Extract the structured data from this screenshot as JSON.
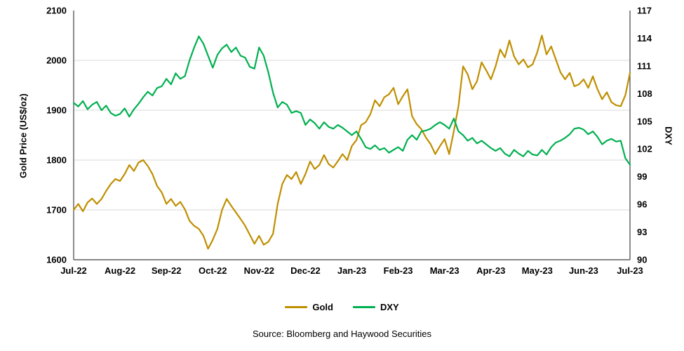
{
  "axes": {
    "left_title": "Gold Price (US$/oz)",
    "right_title": "DXY"
  },
  "legend": {
    "items": [
      {
        "label": "Gold",
        "color": "#BF8F00"
      },
      {
        "label": "DXY",
        "color": "#00B050"
      }
    ]
  },
  "source": "Source: Bloomberg and Haywood Securities",
  "chart_data": {
    "type": "line",
    "x_labels": [
      "Jul-22",
      "Aug-22",
      "Sep-22",
      "Oct-22",
      "Nov-22",
      "Dec-22",
      "Jan-23",
      "Feb-23",
      "Mar-23",
      "Apr-23",
      "May-23",
      "Jun-23",
      "Jul-23"
    ],
    "left_axis": {
      "label": "Gold Price (US$/oz)",
      "min": 1600,
      "max": 2100,
      "ticks": [
        1600,
        1700,
        1800,
        1900,
        2000,
        2100
      ]
    },
    "right_axis": {
      "label": "DXY",
      "min": 90,
      "max": 117,
      "ticks": [
        90,
        93,
        96,
        99,
        102,
        105,
        108,
        111,
        114,
        117
      ]
    },
    "grid": "horizontal",
    "legend_position": "bottom",
    "series": [
      {
        "name": "Gold",
        "axis": "left",
        "color": "#BF8F00",
        "values": [
          1700,
          1712,
          1697,
          1715,
          1723,
          1712,
          1722,
          1738,
          1752,
          1762,
          1758,
          1772,
          1790,
          1778,
          1795,
          1800,
          1788,
          1772,
          1748,
          1735,
          1712,
          1722,
          1708,
          1716,
          1701,
          1678,
          1668,
          1662,
          1648,
          1622,
          1640,
          1662,
          1700,
          1722,
          1708,
          1695,
          1682,
          1668,
          1650,
          1632,
          1648,
          1630,
          1636,
          1652,
          1712,
          1752,
          1770,
          1762,
          1776,
          1752,
          1772,
          1797,
          1782,
          1790,
          1810,
          1792,
          1785,
          1798,
          1812,
          1800,
          1828,
          1840,
          1870,
          1876,
          1892,
          1920,
          1908,
          1926,
          1932,
          1945,
          1912,
          1928,
          1942,
          1888,
          1872,
          1862,
          1845,
          1832,
          1812,
          1828,
          1842,
          1812,
          1858,
          1908,
          1988,
          1972,
          1942,
          1958,
          1996,
          1980,
          1962,
          1988,
          2022,
          2006,
          2040,
          2008,
          1992,
          2002,
          1986,
          1992,
          2016,
          2050,
          2012,
          2028,
          2002,
          1976,
          1962,
          1975,
          1948,
          1952,
          1962,
          1945,
          1968,
          1942,
          1922,
          1936,
          1916,
          1910,
          1908,
          1930,
          1975
        ]
      },
      {
        "name": "DXY",
        "axis": "right",
        "color": "#00B050",
        "values": [
          107.0,
          106.6,
          107.2,
          106.3,
          106.8,
          107.1,
          106.2,
          106.7,
          105.9,
          105.6,
          105.8,
          106.4,
          105.5,
          106.3,
          106.9,
          107.6,
          108.2,
          107.8,
          108.6,
          108.8,
          109.6,
          109.0,
          110.2,
          109.6,
          109.9,
          111.6,
          113.0,
          114.2,
          113.4,
          112.1,
          110.8,
          112.2,
          112.9,
          113.3,
          112.5,
          113.0,
          112.1,
          111.9,
          110.9,
          110.7,
          113.0,
          112.1,
          110.3,
          108.1,
          106.5,
          107.1,
          106.8,
          105.9,
          106.1,
          105.9,
          104.6,
          105.2,
          104.8,
          104.2,
          104.9,
          104.4,
          104.2,
          104.6,
          104.3,
          103.9,
          103.5,
          103.9,
          103.1,
          102.2,
          102.0,
          102.4,
          101.9,
          102.1,
          101.6,
          101.9,
          102.2,
          101.8,
          103.0,
          103.5,
          103.0,
          103.9,
          104.0,
          104.2,
          104.6,
          104.9,
          104.6,
          104.2,
          105.3,
          103.9,
          103.5,
          102.9,
          103.2,
          102.6,
          102.9,
          102.5,
          102.1,
          101.8,
          102.1,
          101.5,
          101.2,
          101.9,
          101.5,
          101.2,
          101.8,
          101.4,
          101.3,
          101.9,
          101.4,
          102.2,
          102.7,
          102.9,
          103.2,
          103.6,
          104.2,
          104.3,
          104.1,
          103.6,
          103.9,
          103.3,
          102.5,
          102.9,
          103.1,
          102.8,
          102.9,
          101.0,
          100.3
        ]
      }
    ]
  }
}
